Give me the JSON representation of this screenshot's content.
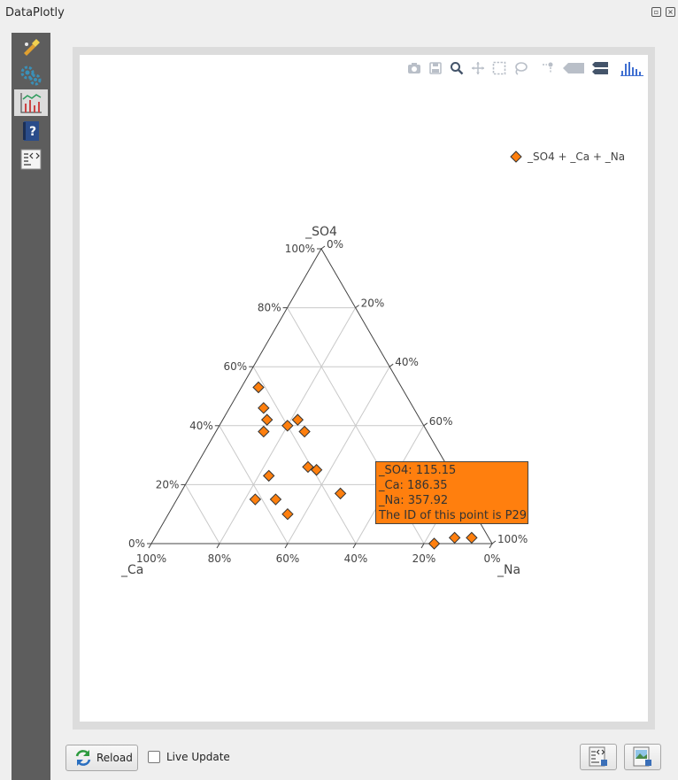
{
  "window": {
    "title": "DataPlotly"
  },
  "sidebar": {
    "items": [
      {
        "name": "style-icon",
        "active": false
      },
      {
        "name": "settings-icon",
        "active": false
      },
      {
        "name": "plot-icon",
        "active": true
      },
      {
        "name": "help-icon",
        "active": false
      },
      {
        "name": "code-icon",
        "active": false
      }
    ]
  },
  "modebar": {
    "icons": [
      "camera-icon",
      "save-icon",
      "zoom-icon",
      "pan-icon",
      "box-select-icon",
      "lasso-select-icon",
      "spike-lines-icon",
      "hover-closest-icon",
      "hover-compare-icon",
      "plotly-logo-icon"
    ]
  },
  "chart_data": {
    "type": "ternary-scatter",
    "axes": {
      "a": {
        "label": "_SO4",
        "ticks": [
          "0%",
          "20%",
          "40%",
          "60%",
          "80%",
          "100%"
        ]
      },
      "b": {
        "label": "_Ca",
        "ticks": [
          "0%",
          "20%",
          "40%",
          "60%",
          "80%",
          "100%"
        ]
      },
      "c": {
        "label": "_Na",
        "ticks": [
          "0%",
          "20%",
          "40%",
          "60%",
          "80%",
          "100%"
        ]
      }
    },
    "grid": true,
    "legend_placement": "top-right",
    "series": [
      {
        "name": "_SO4 + _Ca + _Na",
        "color": "#ff7f0e",
        "marker": "diamond",
        "points": [
          {
            "a": 0.53,
            "b": 0.42,
            "c": 0.05
          },
          {
            "a": 0.46,
            "b": 0.44,
            "c": 0.1
          },
          {
            "a": 0.42,
            "b": 0.45,
            "c": 0.13
          },
          {
            "a": 0.4,
            "b": 0.4,
            "c": 0.2
          },
          {
            "a": 0.42,
            "b": 0.36,
            "c": 0.22
          },
          {
            "a": 0.38,
            "b": 0.36,
            "c": 0.26
          },
          {
            "a": 0.38,
            "b": 0.48,
            "c": 0.14
          },
          {
            "a": 0.26,
            "b": 0.41,
            "c": 0.33
          },
          {
            "a": 0.25,
            "b": 0.39,
            "c": 0.36
          },
          {
            "a": 0.23,
            "b": 0.54,
            "c": 0.23
          },
          {
            "a": 0.15,
            "b": 0.62,
            "c": 0.23
          },
          {
            "a": 0.15,
            "b": 0.56,
            "c": 0.29
          },
          {
            "a": 0.1,
            "b": 0.55,
            "c": 0.35
          },
          {
            "a": 0.17,
            "b": 0.36,
            "c": 0.47
          },
          {
            "a": 0.0,
            "b": 0.17,
            "c": 0.83
          },
          {
            "a": 0.02,
            "b": 0.1,
            "c": 0.88
          },
          {
            "a": 0.02,
            "b": 0.05,
            "c": 0.93
          }
        ]
      }
    ],
    "hover": {
      "lines": [
        "_SO4: 115.15",
        "_Ca: 186.35",
        "_Na: 357.92",
        "The ID of this point is P29"
      ]
    }
  },
  "bottom": {
    "reload_label": "Reload",
    "live_update_label": "Live Update",
    "live_update_checked": false
  }
}
